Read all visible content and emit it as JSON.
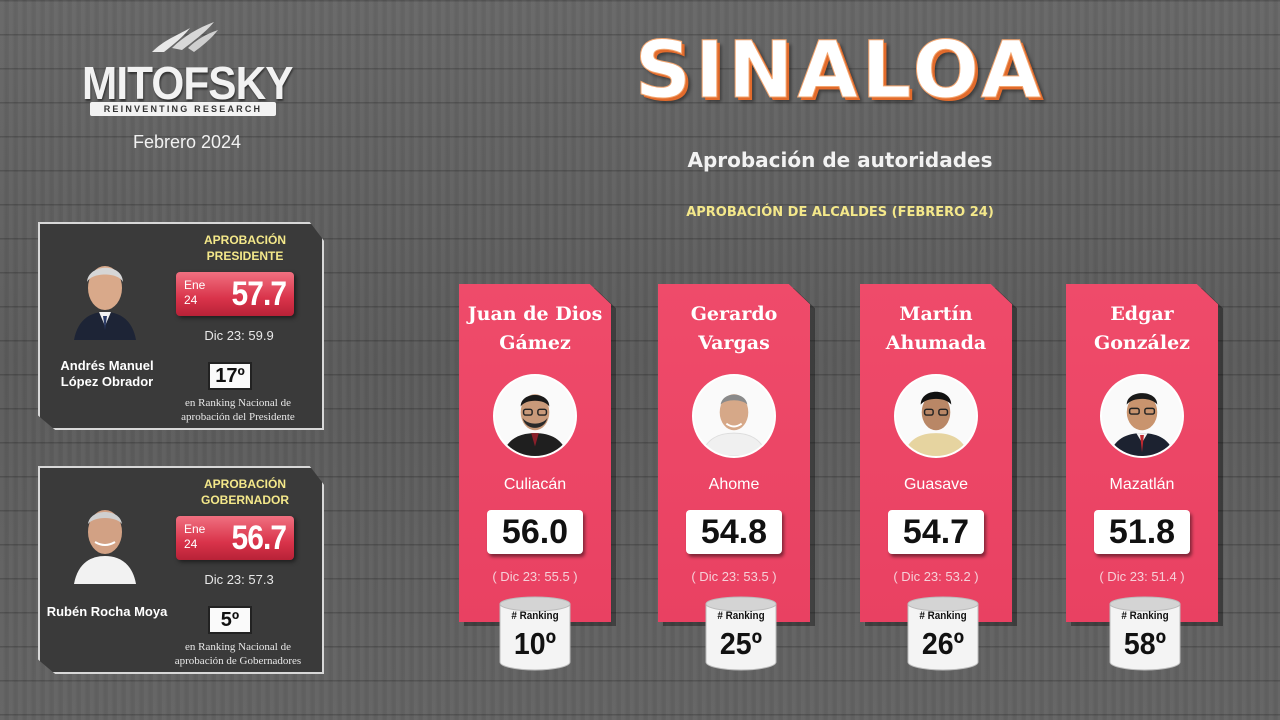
{
  "brand": {
    "name": "MITOFSKY",
    "tagline": "REINVENTING RESEARCH",
    "date": "Febrero 2024"
  },
  "header": {
    "title": "SINALOA",
    "subtitle": "Aprobación de autoridades",
    "section_label": "APROBACIÓN DE ALCALDES (FEBRERO 24)"
  },
  "officials": [
    {
      "name": "Andrés Manuel López Obrador",
      "approval_title": "APROBACIÓN PRESIDENTE",
      "period": "Ene 24",
      "score": "57.7",
      "previous": "Dic 23: 59.9",
      "rank": "17º",
      "rank_caption": "en Ranking Nacional de aprobación del Presidente"
    },
    {
      "name": "Rubén Rocha Moya",
      "approval_title": "APROBACIÓN GOBERNADOR",
      "period": "Ene 24",
      "score": "56.7",
      "previous": "Dic 23: 57.3",
      "rank": "5º",
      "rank_caption": "en Ranking Nacional de aprobación de Gobernadores"
    }
  ],
  "mayors": [
    {
      "name": "Juan de Dios Gámez",
      "city": "Culiacán",
      "score": "56.0",
      "previous": "( Dic 23: 55.5 )",
      "ranking_label": "# Ranking",
      "ranking": "10º"
    },
    {
      "name": "Gerardo Vargas",
      "city": "Ahome",
      "score": "54.8",
      "previous": "( Dic 23: 53.5 )",
      "ranking_label": "# Ranking",
      "ranking": "25º"
    },
    {
      "name": "Martín Ahumada",
      "city": "Guasave",
      "score": "54.7",
      "previous": "( Dic 23: 53.2 )",
      "ranking_label": "# Ranking",
      "ranking": "26º"
    },
    {
      "name": "Edgar González",
      "city": "Mazatlán",
      "score": "51.8",
      "previous": "( Dic 23: 51.4 )",
      "ranking_label": "# Ranking",
      "ranking": "58º"
    }
  ],
  "colors": {
    "card_pink": "#e94162",
    "score_red": "#d9334a",
    "accent_yellow": "#f4e88a",
    "title_orange": "#e26b2c"
  }
}
